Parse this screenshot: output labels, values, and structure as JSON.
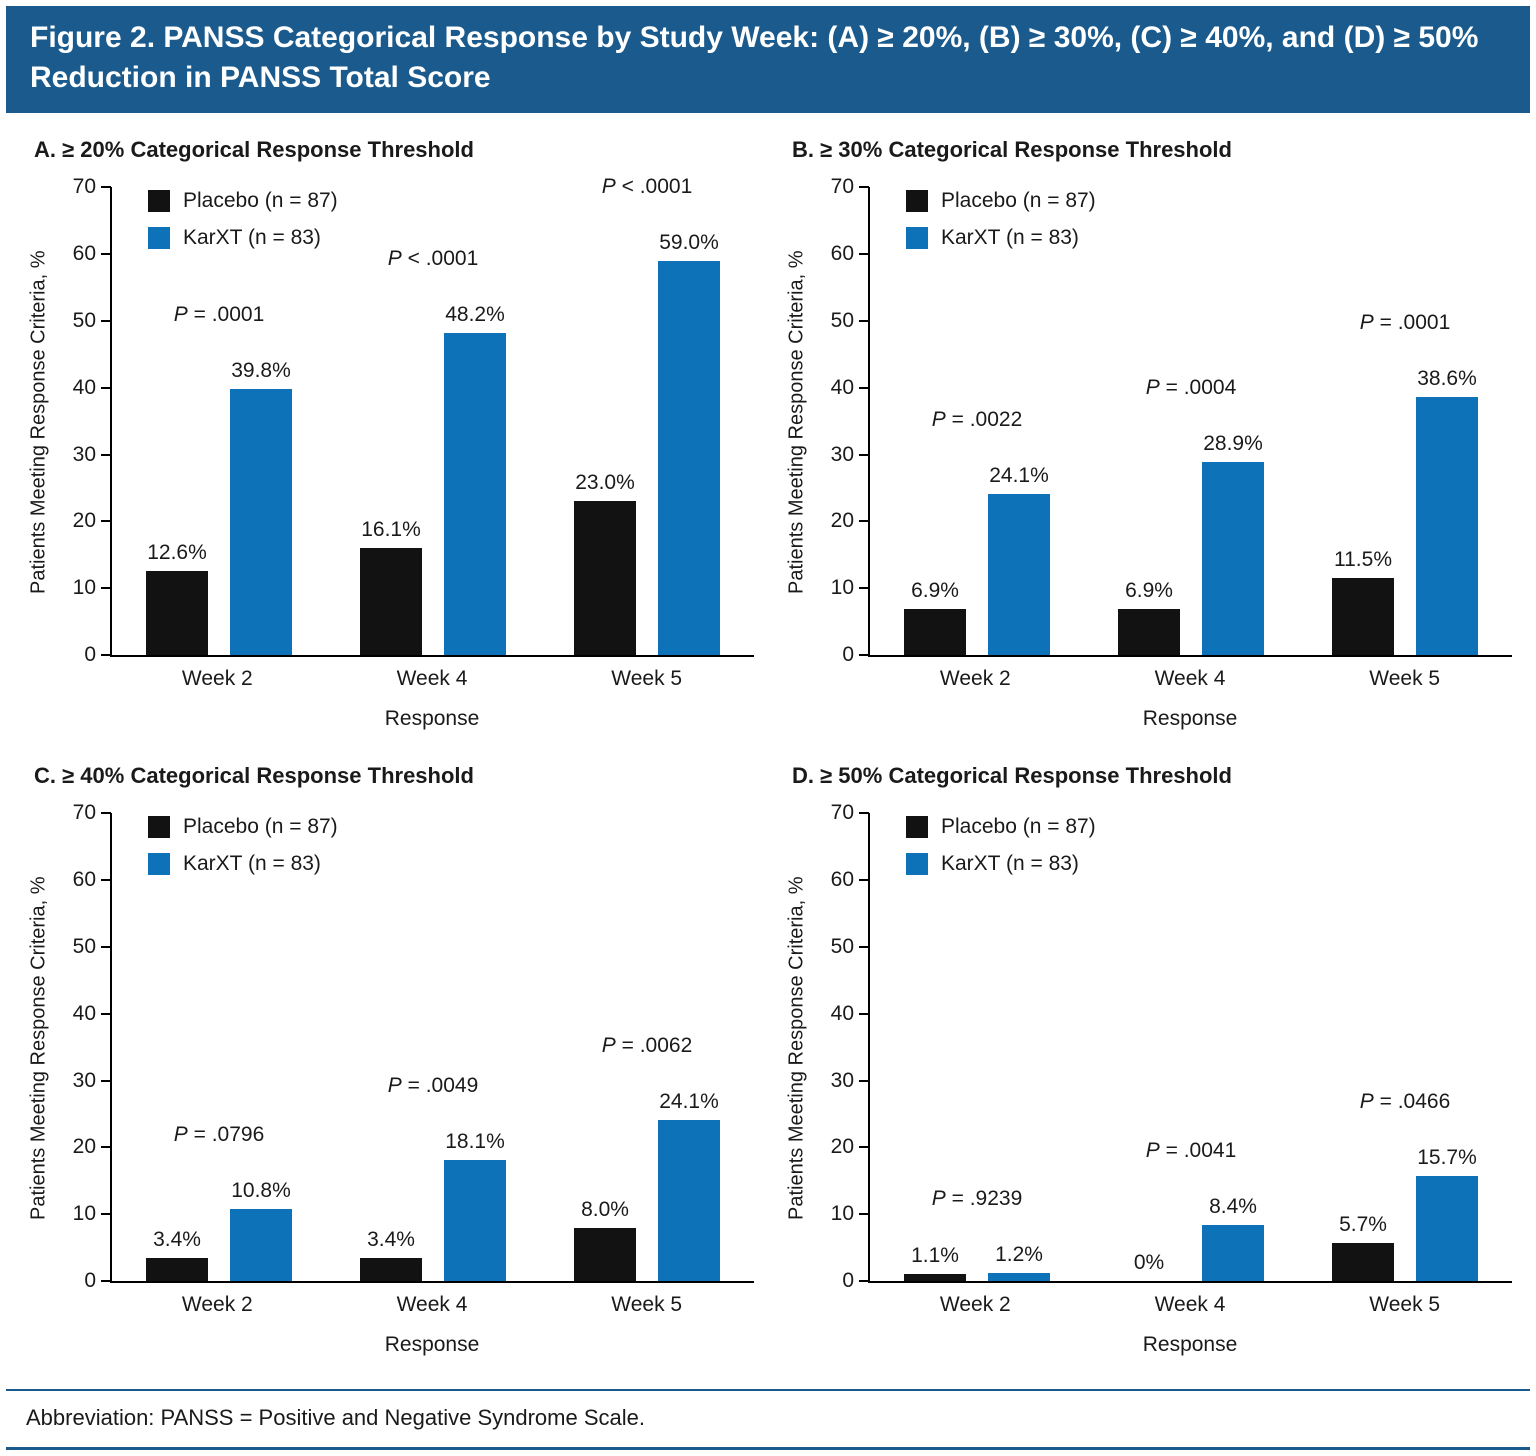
{
  "header": {
    "title": "Figure 2. PANSS Categorical Response by Study Week: (A) ≥ 20%, (B) ≥ 30%, (C) ≥ 40%, and (D) ≥ 50% Reduction in PANSS Total Score"
  },
  "footer": {
    "text": "Abbreviation: PANSS = Positive and Negative Syndrome Scale."
  },
  "colors": {
    "header_bg": "#1a5a8c",
    "line": "#1a5a8c",
    "placebo": "#121212",
    "karxt": "#0e72b8"
  },
  "chart_data": [
    {
      "type": "bar",
      "title": "A. ≥ 20% Categorical Response Threshold",
      "categories": [
        "Week 2",
        "Week 4",
        "Week 5"
      ],
      "series": [
        {
          "name": "Placebo (n = 87)",
          "values": [
            12.6,
            16.1,
            23.0
          ]
        },
        {
          "name": "KarXT (n = 83)",
          "values": [
            39.8,
            48.2,
            59.0
          ]
        }
      ],
      "labels": [
        [
          "12.6%",
          "16.1%",
          "23.0%"
        ],
        [
          "39.8%",
          "48.2%",
          "59.0%"
        ]
      ],
      "p_values": [
        "P = .0001",
        "P < .0001",
        "P < .0001"
      ],
      "xlabel": "Response",
      "ylabel": "Patients Meeting Response Criteria, %",
      "ylim": [
        0,
        70
      ],
      "yticks": [
        0,
        10,
        20,
        30,
        40,
        50,
        60,
        70
      ],
      "grid": false,
      "legend_position": "top-left"
    },
    {
      "type": "bar",
      "title": "B. ≥ 30% Categorical Response Threshold",
      "categories": [
        "Week 2",
        "Week 4",
        "Week 5"
      ],
      "series": [
        {
          "name": "Placebo (n = 87)",
          "values": [
            6.9,
            6.9,
            11.5
          ]
        },
        {
          "name": "KarXT (n = 83)",
          "values": [
            24.1,
            28.9,
            38.6
          ]
        }
      ],
      "labels": [
        [
          "6.9%",
          "6.9%",
          "11.5%"
        ],
        [
          "24.1%",
          "28.9%",
          "38.6%"
        ]
      ],
      "p_values": [
        "P = .0022",
        "P = .0004",
        "P = .0001"
      ],
      "xlabel": "Response",
      "ylabel": "Patients Meeting Response Criteria, %",
      "ylim": [
        0,
        70
      ],
      "yticks": [
        0,
        10,
        20,
        30,
        40,
        50,
        60,
        70
      ],
      "grid": false,
      "legend_position": "top-left"
    },
    {
      "type": "bar",
      "title": "C. ≥ 40% Categorical Response Threshold",
      "categories": [
        "Week 2",
        "Week 4",
        "Week 5"
      ],
      "series": [
        {
          "name": "Placebo (n = 87)",
          "values": [
            3.4,
            3.4,
            8.0
          ]
        },
        {
          "name": "KarXT (n = 83)",
          "values": [
            10.8,
            18.1,
            24.1
          ]
        }
      ],
      "labels": [
        [
          "3.4%",
          "3.4%",
          "8.0%"
        ],
        [
          "10.8%",
          "18.1%",
          "24.1%"
        ]
      ],
      "p_values": [
        "P = .0796",
        "P = .0049",
        "P = .0062"
      ],
      "xlabel": "Response",
      "ylabel": "Patients Meeting Response Criteria, %",
      "ylim": [
        0,
        70
      ],
      "yticks": [
        0,
        10,
        20,
        30,
        40,
        50,
        60,
        70
      ],
      "grid": false,
      "legend_position": "top-left"
    },
    {
      "type": "bar",
      "title": "D. ≥ 50% Categorical Response Threshold",
      "categories": [
        "Week 2",
        "Week 4",
        "Week 5"
      ],
      "series": [
        {
          "name": "Placebo (n = 87)",
          "values": [
            1.1,
            0,
            5.7
          ]
        },
        {
          "name": "KarXT (n = 83)",
          "values": [
            1.2,
            8.4,
            15.7
          ]
        }
      ],
      "labels": [
        [
          "1.1%",
          "0%",
          "5.7%"
        ],
        [
          "1.2%",
          "8.4%",
          "15.7%"
        ]
      ],
      "p_values": [
        "P = .9239",
        "P = .0041",
        "P = .0466"
      ],
      "xlabel": "Response",
      "ylabel": "Patients Meeting Response Criteria, %",
      "ylim": [
        0,
        70
      ],
      "yticks": [
        0,
        10,
        20,
        30,
        40,
        50,
        60,
        70
      ],
      "grid": false,
      "legend_position": "top-left"
    }
  ]
}
